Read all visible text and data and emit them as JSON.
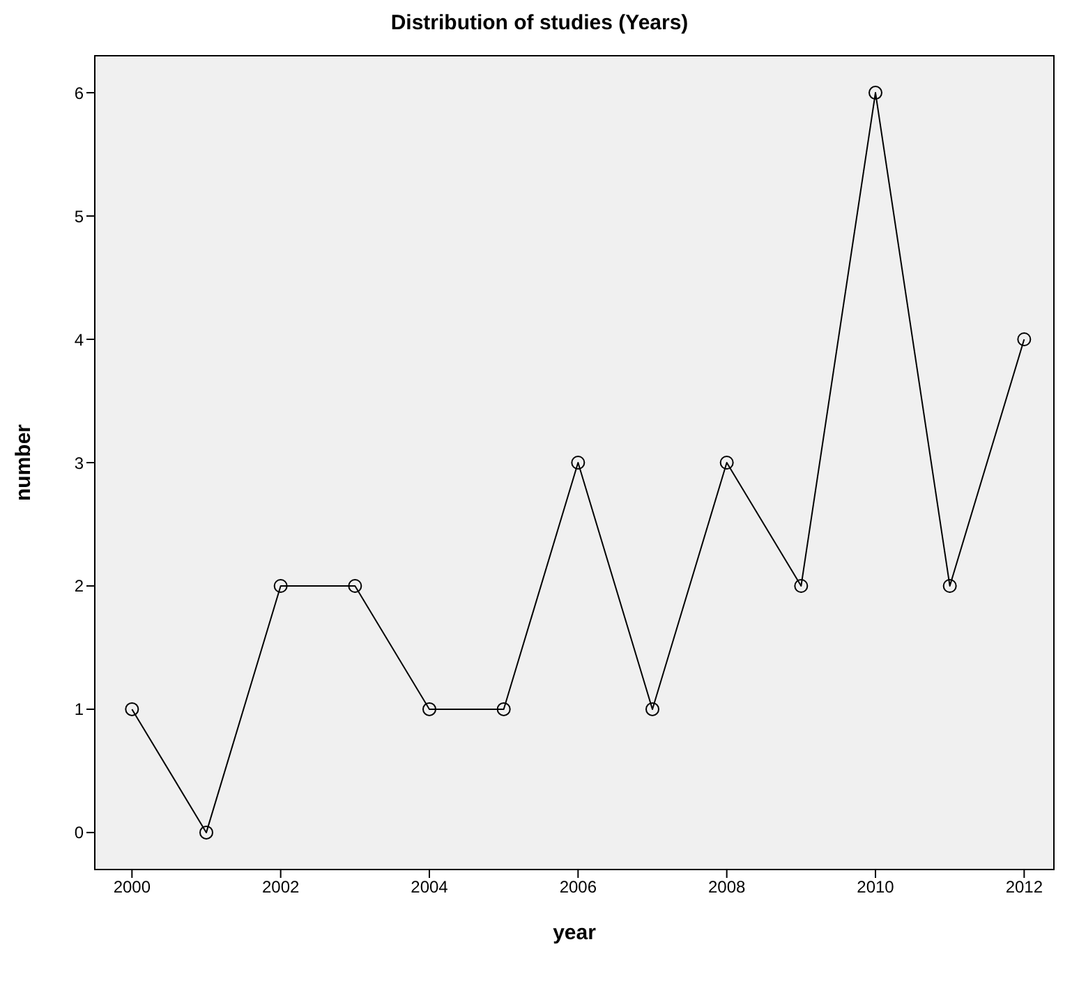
{
  "chart_data": {
    "type": "line",
    "title": "Distribution of studies (Years)",
    "xlabel": "year",
    "ylabel": "number",
    "x": [
      2000,
      2001,
      2002,
      2003,
      2004,
      2005,
      2006,
      2007,
      2008,
      2009,
      2010,
      2011,
      2012
    ],
    "series": [
      {
        "color": "#000000",
        "values": [
          1,
          0,
          2,
          2,
          1,
          1,
          3,
          1,
          3,
          2,
          6,
          2,
          4
        ]
      }
    ],
    "xlim": [
      1999.5,
      2012.4
    ],
    "xticks": [
      2000,
      2002,
      2004,
      2006,
      2008,
      2010,
      2012
    ],
    "ylim": [
      -0.3,
      6.3
    ],
    "yticks": [
      0,
      1,
      2,
      3,
      4,
      5,
      6
    ],
    "legend": false,
    "marker": "circle",
    "line_style": "solid"
  }
}
